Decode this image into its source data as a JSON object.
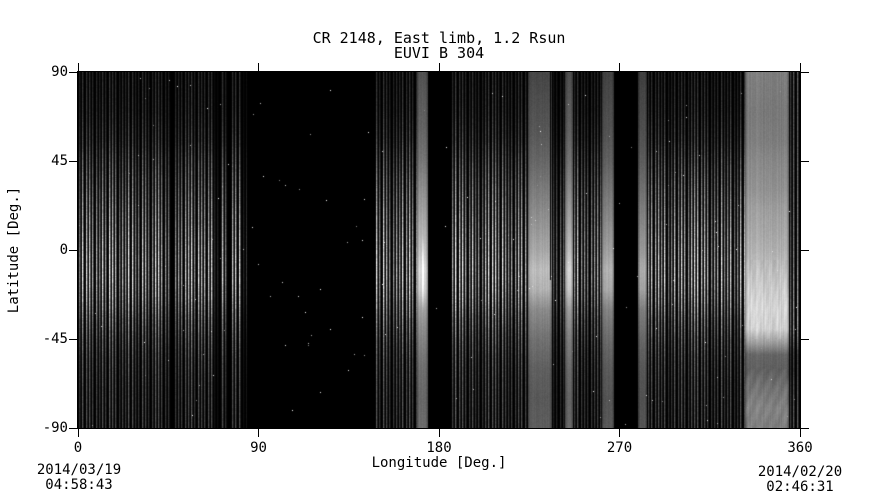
{
  "title": "CR 2148, East limb, 1.2 Rsun",
  "subtitle": "EUVI B 304",
  "dates": {
    "left_date": "2014/03/19",
    "left_time": "04:58:43",
    "right_date": "2014/02/20",
    "right_time": "02:46:31"
  },
  "colors": {
    "background": "#ffffff",
    "ink": "#000000",
    "map_background": "#000000"
  },
  "chart_data": {
    "type": "heatmap",
    "title": "CR 2148, East limb, 1.2 Rsun",
    "subtitle": "EUVI B 304",
    "instrument": "EUVI B 304",
    "xlabel": "Longitude [Deg.]",
    "ylabel": "Latitude [Deg.]",
    "xlim": [
      0,
      360
    ],
    "ylim": [
      -90,
      90
    ],
    "xticks": [
      0,
      90,
      180,
      270,
      360
    ],
    "yticks": [
      90,
      45,
      0,
      -45,
      -90
    ],
    "colormap": "grayscale",
    "grid": false,
    "start_annotation": "2014/03/19 04:58:43",
    "end_annotation": "2014/02/20 02:46:31",
    "latitude_profiles": {
      "stripes": [
        [
          90,
          0.2
        ],
        [
          70,
          0.24
        ],
        [
          55,
          0.33
        ],
        [
          45,
          0.46
        ],
        [
          30,
          0.63
        ],
        [
          15,
          0.79
        ],
        [
          5,
          0.89
        ],
        [
          -5,
          0.97
        ],
        [
          -15,
          1.0
        ],
        [
          -25,
          0.88
        ],
        [
          -35,
          0.67
        ],
        [
          -45,
          0.53
        ],
        [
          -55,
          0.43
        ],
        [
          -70,
          0.37
        ],
        [
          -90,
          0.34
        ]
      ],
      "smooth": [
        [
          90,
          0.32
        ],
        [
          60,
          0.4
        ],
        [
          45,
          0.47
        ],
        [
          30,
          0.57
        ],
        [
          15,
          0.67
        ],
        [
          0,
          0.77
        ],
        [
          -10,
          0.87
        ],
        [
          -20,
          0.82
        ],
        [
          -30,
          0.64
        ],
        [
          -45,
          0.52
        ],
        [
          -60,
          0.44
        ],
        [
          -75,
          0.41
        ],
        [
          -90,
          0.43
        ]
      ],
      "wide": [
        [
          90,
          0.5
        ],
        [
          70,
          0.48
        ],
        [
          55,
          0.5
        ],
        [
          45,
          0.54
        ],
        [
          30,
          0.58
        ],
        [
          20,
          0.63
        ],
        [
          10,
          0.66
        ],
        [
          0,
          0.7
        ],
        [
          -10,
          0.76
        ],
        [
          -20,
          0.81
        ],
        [
          -30,
          0.85
        ],
        [
          -40,
          0.83
        ],
        [
          -47,
          0.62
        ],
        [
          -53,
          0.4
        ],
        [
          -60,
          0.38
        ],
        [
          -70,
          0.46
        ],
        [
          -80,
          0.52
        ],
        [
          -90,
          0.5
        ]
      ]
    },
    "segments": [
      {
        "x0": 0.0,
        "x1": 67.2,
        "kind": "stripes",
        "gain": 1.0
      },
      {
        "x0": 67.2,
        "x1": 71.3,
        "kind": "stripes",
        "gain": 0.2
      },
      {
        "x0": 71.3,
        "x1": 81.3,
        "kind": "stripes",
        "gain": 1.0
      },
      {
        "x0": 81.9,
        "x1": 84.3,
        "kind": "stripes",
        "gain": 0.24
      },
      {
        "x0": 84.3,
        "x1": 148.1,
        "kind": "black"
      },
      {
        "x0": 148.1,
        "x1": 169.0,
        "kind": "stripes",
        "gain": 1.0
      },
      {
        "x0": 169.0,
        "x1": 174.5,
        "kind": "smooth",
        "gain": 1.0,
        "core": true
      },
      {
        "x0": 174.5,
        "x1": 186.0,
        "kind": "black"
      },
      {
        "x0": 186.0,
        "x1": 224.4,
        "kind": "stripes",
        "gain": 1.05
      },
      {
        "x0": 224.4,
        "x1": 236.3,
        "kind": "smooth",
        "gain": 0.85
      },
      {
        "x0": 236.3,
        "x1": 242.9,
        "kind": "stripes",
        "gain": 0.5
      },
      {
        "x0": 242.9,
        "x1": 246.9,
        "kind": "smooth",
        "gain": 0.95
      },
      {
        "x0": 246.9,
        "x1": 261.3,
        "kind": "stripes",
        "gain": 0.95
      },
      {
        "x0": 261.3,
        "x1": 267.3,
        "kind": "smooth",
        "gain": 0.8
      },
      {
        "x0": 267.3,
        "x1": 279.3,
        "kind": "black"
      },
      {
        "x0": 279.3,
        "x1": 283.8,
        "kind": "smooth",
        "gain": 0.78
      },
      {
        "x0": 283.8,
        "x1": 332.6,
        "kind": "stripes",
        "gain": 0.95
      },
      {
        "x0": 332.6,
        "x1": 354.6,
        "kind": "wide",
        "gain": 1.0
      },
      {
        "x0": 354.6,
        "x1": 360.0,
        "kind": "stripes",
        "gain": 0.85,
        "profile": "wide"
      }
    ],
    "features": [
      {
        "kind": "dark_line",
        "x": 235.1,
        "lat_top": 90,
        "lat_bottom": -15
      }
    ]
  }
}
